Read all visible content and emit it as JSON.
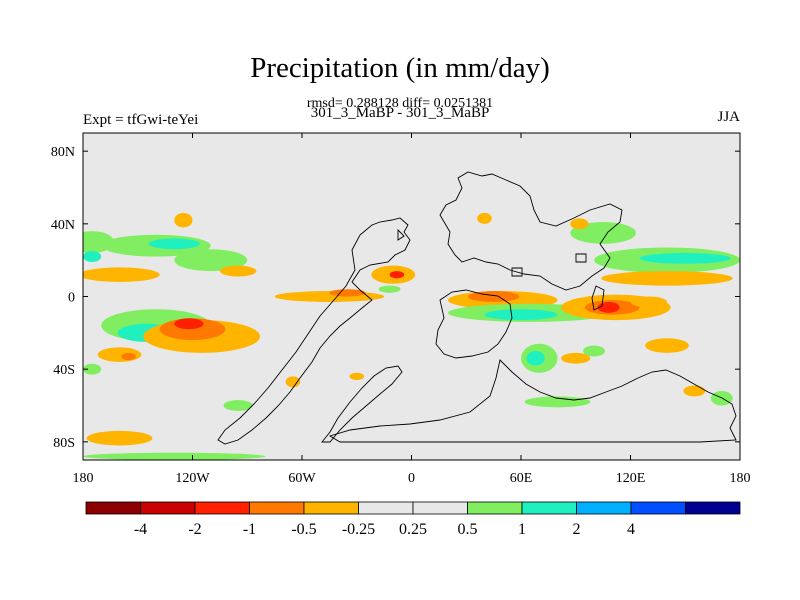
{
  "chart_data": {
    "type": "heatmap",
    "title": "Precipitation (in mm/day)",
    "stats_line": "rmsd= 0.288128 diff= 0.0251381",
    "cases_line": "301_3_MaBP - 301_3_MaBP",
    "left_label": "Expt = tfGwi-teYei",
    "right_label": "JJA",
    "xlim": [
      -180,
      180
    ],
    "ylim": [
      -90,
      90
    ],
    "x_ticks": [
      {
        "value": -180,
        "label": "180"
      },
      {
        "value": -120,
        "label": "120W"
      },
      {
        "value": -60,
        "label": "60W"
      },
      {
        "value": 0,
        "label": "0"
      },
      {
        "value": 60,
        "label": "60E"
      },
      {
        "value": 120,
        "label": "120E"
      },
      {
        "value": 180,
        "label": "180"
      }
    ],
    "y_ticks": [
      {
        "value": 80,
        "label": "80N"
      },
      {
        "value": 40,
        "label": "40N"
      },
      {
        "value": 0,
        "label": "0"
      },
      {
        "value": -40,
        "label": "40S"
      },
      {
        "value": -80,
        "label": "80S"
      }
    ],
    "colorbar": {
      "colors": [
        "#8c0000",
        "#c80000",
        "#ff2000",
        "#ff7800",
        "#ffb400",
        "#e8e8e8",
        "#e8e8e8",
        "#80ee60",
        "#20f0c0",
        "#00b0ff",
        "#0050ff",
        "#000090"
      ],
      "labels": [
        "-4",
        "-2",
        "-1",
        "-0.5",
        "-0.25",
        "0.25",
        "0.5",
        "1",
        "2",
        "4"
      ],
      "label_bounds": [
        1,
        2,
        3,
        4,
        5,
        6,
        7,
        8,
        9,
        10
      ]
    },
    "background_color": "#e8e8e8",
    "anomaly_regions": [
      {
        "level": "0.5",
        "color": "#80ee60",
        "lon": -175,
        "lat": 30,
        "rlon": 12,
        "rlat": 6
      },
      {
        "level": "1",
        "color": "#20f0c0",
        "lon": -175,
        "lat": 22,
        "rlon": 5,
        "rlat": 3
      },
      {
        "level": "0.5",
        "color": "#80ee60",
        "lon": -140,
        "lat": 28,
        "rlon": 30,
        "rlat": 6
      },
      {
        "level": "1",
        "color": "#20f0c0",
        "lon": -130,
        "lat": 29,
        "rlon": 14,
        "rlat": 3
      },
      {
        "level": "-0.25",
        "color": "#ffb400",
        "lon": -125,
        "lat": 42,
        "rlon": 5,
        "rlat": 4
      },
      {
        "level": "-0.25",
        "color": "#ffb400",
        "lon": -160,
        "lat": 12,
        "rlon": 22,
        "rlat": 4
      },
      {
        "level": "0.5",
        "color": "#80ee60",
        "lon": -110,
        "lat": 20,
        "rlon": 20,
        "rlat": 6
      },
      {
        "level": "-0.25",
        "color": "#ffb400",
        "lon": -95,
        "lat": 14,
        "rlon": 10,
        "rlat": 3
      },
      {
        "level": "-0.25",
        "color": "#ffb400",
        "lon": -45,
        "lat": 0,
        "rlon": 30,
        "rlat": 3
      },
      {
        "level": "-0.5",
        "color": "#ff7800",
        "lon": -35,
        "lat": 2,
        "rlon": 10,
        "rlat": 2
      },
      {
        "level": "-0.25",
        "color": "#ffb400",
        "lon": -10,
        "lat": 12,
        "rlon": 12,
        "rlat": 5
      },
      {
        "level": "-1",
        "color": "#ff2000",
        "lon": -8,
        "lat": 12,
        "rlon": 4,
        "rlat": 2
      },
      {
        "level": "0.5",
        "color": "#80ee60",
        "lon": -12,
        "lat": 4,
        "rlon": 6,
        "rlat": 2
      },
      {
        "level": "0.5",
        "color": "#80ee60",
        "lon": -140,
        "lat": -16,
        "rlon": 30,
        "rlat": 9
      },
      {
        "level": "1",
        "color": "#20f0c0",
        "lon": -145,
        "lat": -20,
        "rlon": 16,
        "rlat": 5
      },
      {
        "level": "-0.25",
        "color": "#ffb400",
        "lon": -115,
        "lat": -22,
        "rlon": 32,
        "rlat": 9
      },
      {
        "level": "-0.5",
        "color": "#ff7800",
        "lon": -120,
        "lat": -18,
        "rlon": 18,
        "rlat": 6
      },
      {
        "level": "-1",
        "color": "#ff2000",
        "lon": -122,
        "lat": -15,
        "rlon": 8,
        "rlat": 3
      },
      {
        "level": "-0.25",
        "color": "#ffb400",
        "lon": -160,
        "lat": -32,
        "rlon": 12,
        "rlat": 4
      },
      {
        "level": "-0.5",
        "color": "#ff7800",
        "lon": -155,
        "lat": -33,
        "rlon": 4,
        "rlat": 2
      },
      {
        "level": "0.5",
        "color": "#80ee60",
        "lon": -175,
        "lat": -40,
        "rlon": 5,
        "rlat": 3
      },
      {
        "level": "-0.25",
        "color": "#ffb400",
        "lon": -160,
        "lat": -78,
        "rlon": 18,
        "rlat": 4
      },
      {
        "level": "0.5",
        "color": "#80ee60",
        "lon": -130,
        "lat": -88,
        "rlon": 50,
        "rlat": 2
      },
      {
        "level": "0.5",
        "color": "#80ee60",
        "lon": -95,
        "lat": -60,
        "rlon": 8,
        "rlat": 3
      },
      {
        "level": "-0.25",
        "color": "#ffb400",
        "lon": -65,
        "lat": -47,
        "rlon": 4,
        "rlat": 3
      },
      {
        "level": "-0.25",
        "color": "#ffb400",
        "lon": 50,
        "lat": -2,
        "rlon": 30,
        "rlat": 5
      },
      {
        "level": "-0.5",
        "color": "#ff7800",
        "lon": 45,
        "lat": 0,
        "rlon": 14,
        "rlat": 3
      },
      {
        "level": "0.5",
        "color": "#80ee60",
        "lon": 65,
        "lat": -9,
        "rlon": 45,
        "rlat": 5
      },
      {
        "level": "1",
        "color": "#20f0c0",
        "lon": 60,
        "lat": -10,
        "rlon": 20,
        "rlat": 3
      },
      {
        "level": "-0.25",
        "color": "#ffb400",
        "lon": 112,
        "lat": -6,
        "rlon": 30,
        "rlat": 7
      },
      {
        "level": "-0.5",
        "color": "#ff7800",
        "lon": 110,
        "lat": -6,
        "rlon": 15,
        "rlat": 4
      },
      {
        "level": "-1",
        "color": "#ff2000",
        "lon": 108,
        "lat": -6,
        "rlon": 6,
        "rlat": 3
      },
      {
        "level": "-0.25",
        "color": "#ffb400",
        "lon": 130,
        "lat": -3,
        "rlon": 10,
        "rlat": 3
      },
      {
        "level": "0.5",
        "color": "#80ee60",
        "lon": 140,
        "lat": 20,
        "rlon": 40,
        "rlat": 7
      },
      {
        "level": "1",
        "color": "#20f0c0",
        "lon": 150,
        "lat": 21,
        "rlon": 25,
        "rlat": 3
      },
      {
        "level": "-0.25",
        "color": "#ffb400",
        "lon": 140,
        "lat": 10,
        "rlon": 36,
        "rlat": 4
      },
      {
        "level": "0.5",
        "color": "#80ee60",
        "lon": 105,
        "lat": 35,
        "rlon": 18,
        "rlat": 6
      },
      {
        "level": "-0.25",
        "color": "#ffb400",
        "lon": 92,
        "lat": 40,
        "rlon": 5,
        "rlat": 3
      },
      {
        "level": "-0.25",
        "color": "#ffb400",
        "lon": 40,
        "lat": 43,
        "rlon": 4,
        "rlat": 3
      },
      {
        "level": "0.5",
        "color": "#80ee60",
        "lon": 70,
        "lat": -34,
        "rlon": 10,
        "rlat": 8
      },
      {
        "level": "1",
        "color": "#20f0c0",
        "lon": 68,
        "lat": -34,
        "rlon": 5,
        "rlat": 4
      },
      {
        "level": "-0.25",
        "color": "#ffb400",
        "lon": 90,
        "lat": -34,
        "rlon": 8,
        "rlat": 3
      },
      {
        "level": "0.5",
        "color": "#80ee60",
        "lon": 100,
        "lat": -30,
        "rlon": 6,
        "rlat": 3
      },
      {
        "level": "-0.25",
        "color": "#ffb400",
        "lon": 140,
        "lat": -27,
        "rlon": 12,
        "rlat": 4
      },
      {
        "level": "0.5",
        "color": "#80ee60",
        "lon": 80,
        "lat": -58,
        "rlon": 18,
        "rlat": 3
      },
      {
        "level": "-0.25",
        "color": "#ffb400",
        "lon": 155,
        "lat": -52,
        "rlon": 6,
        "rlat": 3
      },
      {
        "level": "0.5",
        "color": "#80ee60",
        "lon": 170,
        "lat": -56,
        "rlon": 6,
        "rlat": 4
      },
      {
        "level": "-0.25",
        "color": "#ffb400",
        "lon": -30,
        "lat": -44,
        "rlon": 4,
        "rlat": 2
      }
    ]
  }
}
